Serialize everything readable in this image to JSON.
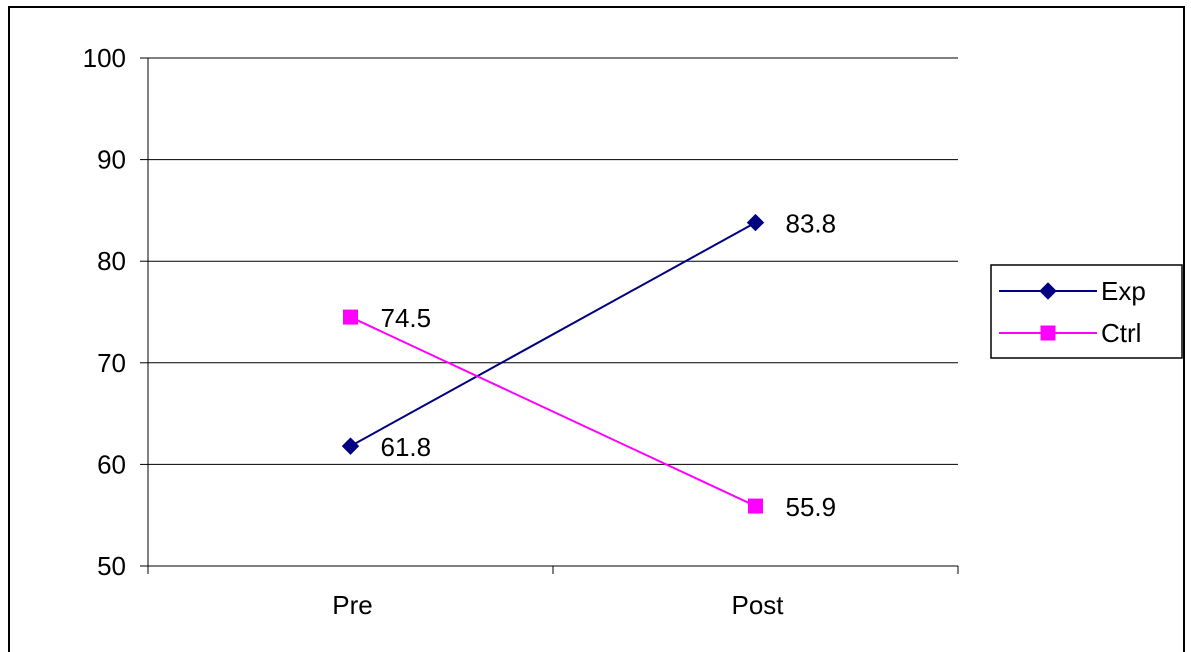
{
  "chart_data": {
    "type": "line",
    "categories": [
      "Pre",
      "Post"
    ],
    "series": [
      {
        "name": "Exp",
        "values": [
          61.8,
          83.8
        ],
        "color": "#000080",
        "marker": "diamond"
      },
      {
        "name": "Ctrl",
        "values": [
          74.5,
          55.9
        ],
        "color": "#FF00FF",
        "marker": "square"
      }
    ],
    "ylim": [
      50,
      100
    ],
    "yticks": [
      50,
      60,
      70,
      80,
      90,
      100
    ],
    "grid": true,
    "legend_position": "right",
    "data_labels": true
  }
}
